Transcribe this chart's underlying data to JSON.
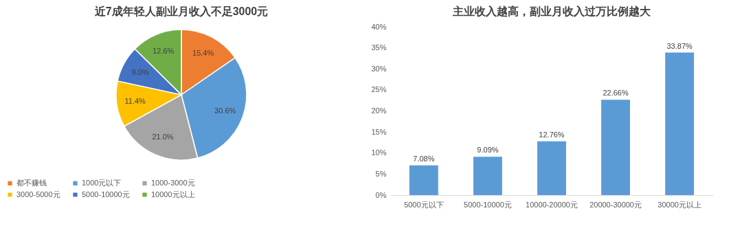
{
  "chart_data": [
    {
      "type": "pie",
      "title": "近7成年轻人副业月收入不足3000元",
      "categories": [
        "都不赚钱",
        "1000元以下",
        "1000-3000元",
        "3000-5000元",
        "5000-10000元",
        "10000元以上"
      ],
      "values": [
        15.4,
        30.6,
        21.0,
        11.4,
        9.0,
        12.6
      ],
      "value_labels": [
        "15.4%",
        "30.6%",
        "21.0%",
        "11.4%",
        "9.0%",
        "12.6%"
      ],
      "colors": [
        "#ed7d31",
        "#5b9bd5",
        "#a5a5a5",
        "#ffc000",
        "#4472c4",
        "#70ad47"
      ],
      "legend": "bottom"
    },
    {
      "type": "bar",
      "title": "主业收入越高，副业月收入过万比例越大",
      "categories": [
        "5000元以下",
        "5000-10000元",
        "10000-20000元",
        "20000-30000元",
        "30000元以上"
      ],
      "values": [
        7.08,
        9.09,
        12.76,
        22.66,
        33.87
      ],
      "value_labels": [
        "7.08%",
        "9.09%",
        "12.76%",
        "22.66%",
        "33.87%"
      ],
      "color": "#5b9bd5",
      "ylim": [
        0,
        40
      ],
      "yticks": [
        {
          "value": 0,
          "label": "0%"
        },
        {
          "value": 5,
          "label": "5%"
        },
        {
          "value": 10,
          "label": "10%"
        },
        {
          "value": 15,
          "label": "15%"
        },
        {
          "value": 20,
          "label": "20%"
        },
        {
          "value": 25,
          "label": "25%"
        },
        {
          "value": 30,
          "label": "30%"
        },
        {
          "value": 35,
          "label": "35%"
        },
        {
          "value": 40,
          "label": "40%"
        }
      ]
    }
  ]
}
